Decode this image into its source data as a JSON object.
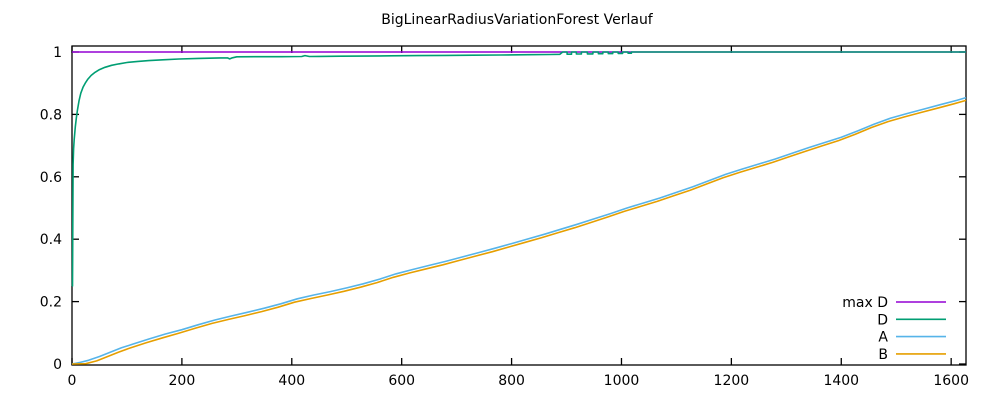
{
  "title": "BigLinearRadiusVariationForest Verlauf",
  "chart_data": {
    "type": "line",
    "title": "BigLinearRadiusVariationForest Verlauf",
    "xlabel": "",
    "ylabel": "",
    "xlim": [
      0,
      1627
    ],
    "ylim": [
      0,
      1.02
    ],
    "grid": false,
    "background_color": "#ffffff",
    "axis_color": "#000000",
    "legend_position": "bottom-right-inside",
    "xticks": [
      {
        "value": 0,
        "label": "0"
      },
      {
        "value": 200,
        "label": "200"
      },
      {
        "value": 400,
        "label": "400"
      },
      {
        "value": 600,
        "label": "600"
      },
      {
        "value": 800,
        "label": "800"
      },
      {
        "value": 1000,
        "label": "1000"
      },
      {
        "value": 1200,
        "label": "1200"
      },
      {
        "value": 1400,
        "label": "1400"
      },
      {
        "value": 1600,
        "label": "1600"
      }
    ],
    "yticks": [
      {
        "value": 0,
        "label": "0"
      },
      {
        "value": 0.2,
        "label": "0.2"
      },
      {
        "value": 0.4,
        "label": "0.4"
      },
      {
        "value": 0.6,
        "label": "0.6"
      },
      {
        "value": 0.8,
        "label": "0.8"
      },
      {
        "value": 1,
        "label": "1"
      }
    ],
    "series": [
      {
        "name": "max D",
        "color": "#9400d3",
        "points": [
          [
            0,
            1
          ],
          [
            1627,
            1
          ]
        ]
      },
      {
        "name": "D",
        "color": "#009e73",
        "points": [
          [
            0,
            0.25
          ],
          [
            1,
            0.25
          ],
          [
            2,
            0.64
          ],
          [
            3,
            0.69
          ],
          [
            4,
            0.72
          ],
          [
            6,
            0.76
          ],
          [
            8,
            0.79
          ],
          [
            10,
            0.815
          ],
          [
            13,
            0.845
          ],
          [
            16,
            0.868
          ],
          [
            20,
            0.887
          ],
          [
            24,
            0.9
          ],
          [
            29,
            0.913
          ],
          [
            35,
            0.925
          ],
          [
            42,
            0.935
          ],
          [
            50,
            0.9435
          ],
          [
            60,
            0.951
          ],
          [
            72,
            0.9575
          ],
          [
            85,
            0.962
          ],
          [
            100,
            0.9665
          ],
          [
            120,
            0.97
          ],
          [
            140,
            0.9725
          ],
          [
            165,
            0.975
          ],
          [
            195,
            0.9775
          ],
          [
            230,
            0.9795
          ],
          [
            270,
            0.981
          ],
          [
            283,
            0.981
          ],
          [
            287,
            0.978
          ],
          [
            292,
            0.9815
          ],
          [
            300,
            0.9845
          ],
          [
            340,
            0.9848
          ],
          [
            380,
            0.985
          ],
          [
            418,
            0.9855
          ],
          [
            424,
            0.9885
          ],
          [
            432,
            0.9855
          ],
          [
            450,
            0.986
          ],
          [
            490,
            0.9865
          ],
          [
            530,
            0.987
          ],
          [
            580,
            0.9878
          ],
          [
            630,
            0.9885
          ],
          [
            680,
            0.989
          ],
          [
            730,
            0.9897
          ],
          [
            780,
            0.9905
          ],
          [
            830,
            0.9912
          ],
          [
            870,
            0.992
          ],
          [
            888,
            0.9925
          ],
          [
            893,
            1
          ],
          [
            901,
            1
          ],
          [
            901,
            0.993
          ],
          [
            909,
            0.993
          ],
          [
            909,
            1
          ],
          [
            918,
            1
          ],
          [
            918,
            0.9935
          ],
          [
            927,
            0.9935
          ],
          [
            927,
            1
          ],
          [
            938,
            1
          ],
          [
            938,
            0.994
          ],
          [
            948,
            0.994
          ],
          [
            948,
            1
          ],
          [
            958,
            1
          ],
          [
            958,
            0.9945
          ],
          [
            966,
            0.9945
          ],
          [
            966,
            1
          ],
          [
            976,
            1
          ],
          [
            976,
            0.995
          ],
          [
            984,
            0.995
          ],
          [
            984,
            1
          ],
          [
            994,
            1
          ],
          [
            994,
            0.9955
          ],
          [
            1002,
            0.9955
          ],
          [
            1002,
            1
          ],
          [
            1012,
            1
          ],
          [
            1012,
            0.996
          ],
          [
            1018,
            0.996
          ],
          [
            1018,
            1
          ],
          [
            1627,
            1
          ]
        ]
      },
      {
        "name": "A",
        "color": "#56b4e9",
        "points": [
          [
            0,
            0
          ],
          [
            15,
            0.005
          ],
          [
            30,
            0.012
          ],
          [
            50,
            0.024
          ],
          [
            70,
            0.038
          ],
          [
            90,
            0.052
          ],
          [
            110,
            0.063
          ],
          [
            140,
            0.08
          ],
          [
            170,
            0.096
          ],
          [
            200,
            0.11
          ],
          [
            230,
            0.126
          ],
          [
            260,
            0.141
          ],
          [
            290,
            0.154
          ],
          [
            320,
            0.166
          ],
          [
            350,
            0.179
          ],
          [
            380,
            0.193
          ],
          [
            410,
            0.209
          ],
          [
            440,
            0.221
          ],
          [
            470,
            0.232
          ],
          [
            500,
            0.244
          ],
          [
            530,
            0.257
          ],
          [
            560,
            0.272
          ],
          [
            590,
            0.289
          ],
          [
            620,
            0.303
          ],
          [
            650,
            0.316
          ],
          [
            680,
            0.329
          ],
          [
            710,
            0.343
          ],
          [
            740,
            0.357
          ],
          [
            770,
            0.371
          ],
          [
            800,
            0.386
          ],
          [
            830,
            0.401
          ],
          [
            860,
            0.416
          ],
          [
            890,
            0.432
          ],
          [
            920,
            0.448
          ],
          [
            950,
            0.465
          ],
          [
            980,
            0.482
          ],
          [
            1010,
            0.5
          ],
          [
            1040,
            0.516
          ],
          [
            1070,
            0.532
          ],
          [
            1100,
            0.55
          ],
          [
            1130,
            0.568
          ],
          [
            1160,
            0.588
          ],
          [
            1190,
            0.608
          ],
          [
            1220,
            0.625
          ],
          [
            1250,
            0.641
          ],
          [
            1280,
            0.657
          ],
          [
            1310,
            0.675
          ],
          [
            1340,
            0.693
          ],
          [
            1370,
            0.71
          ],
          [
            1400,
            0.727
          ],
          [
            1430,
            0.747
          ],
          [
            1460,
            0.769
          ],
          [
            1490,
            0.788
          ],
          [
            1520,
            0.803
          ],
          [
            1550,
            0.817
          ],
          [
            1580,
            0.831
          ],
          [
            1610,
            0.845
          ],
          [
            1627,
            0.854
          ]
        ]
      },
      {
        "name": "B",
        "color": "#e69f00",
        "points": [
          [
            0,
            0
          ],
          [
            25,
            0.001
          ],
          [
            45,
            0.01
          ],
          [
            65,
            0.024
          ],
          [
            85,
            0.038
          ],
          [
            105,
            0.051
          ],
          [
            135,
            0.068
          ],
          [
            165,
            0.084
          ],
          [
            195,
            0.099
          ],
          [
            225,
            0.115
          ],
          [
            255,
            0.13
          ],
          [
            285,
            0.143
          ],
          [
            315,
            0.155
          ],
          [
            345,
            0.168
          ],
          [
            375,
            0.182
          ],
          [
            405,
            0.198
          ],
          [
            435,
            0.21
          ],
          [
            465,
            0.221
          ],
          [
            495,
            0.233
          ],
          [
            525,
            0.246
          ],
          [
            555,
            0.261
          ],
          [
            585,
            0.278
          ],
          [
            615,
            0.292
          ],
          [
            645,
            0.305
          ],
          [
            675,
            0.318
          ],
          [
            705,
            0.332
          ],
          [
            735,
            0.346
          ],
          [
            765,
            0.36
          ],
          [
            795,
            0.375
          ],
          [
            825,
            0.39
          ],
          [
            855,
            0.405
          ],
          [
            885,
            0.421
          ],
          [
            915,
            0.437
          ],
          [
            945,
            0.454
          ],
          [
            975,
            0.471
          ],
          [
            1005,
            0.489
          ],
          [
            1035,
            0.505
          ],
          [
            1065,
            0.521
          ],
          [
            1095,
            0.539
          ],
          [
            1125,
            0.557
          ],
          [
            1155,
            0.577
          ],
          [
            1185,
            0.597
          ],
          [
            1215,
            0.614
          ],
          [
            1245,
            0.63
          ],
          [
            1275,
            0.646
          ],
          [
            1305,
            0.664
          ],
          [
            1335,
            0.682
          ],
          [
            1365,
            0.699
          ],
          [
            1395,
            0.716
          ],
          [
            1425,
            0.736
          ],
          [
            1455,
            0.758
          ],
          [
            1485,
            0.777
          ],
          [
            1515,
            0.792
          ],
          [
            1545,
            0.806
          ],
          [
            1575,
            0.82
          ],
          [
            1605,
            0.834
          ],
          [
            1627,
            0.845
          ]
        ]
      }
    ]
  }
}
